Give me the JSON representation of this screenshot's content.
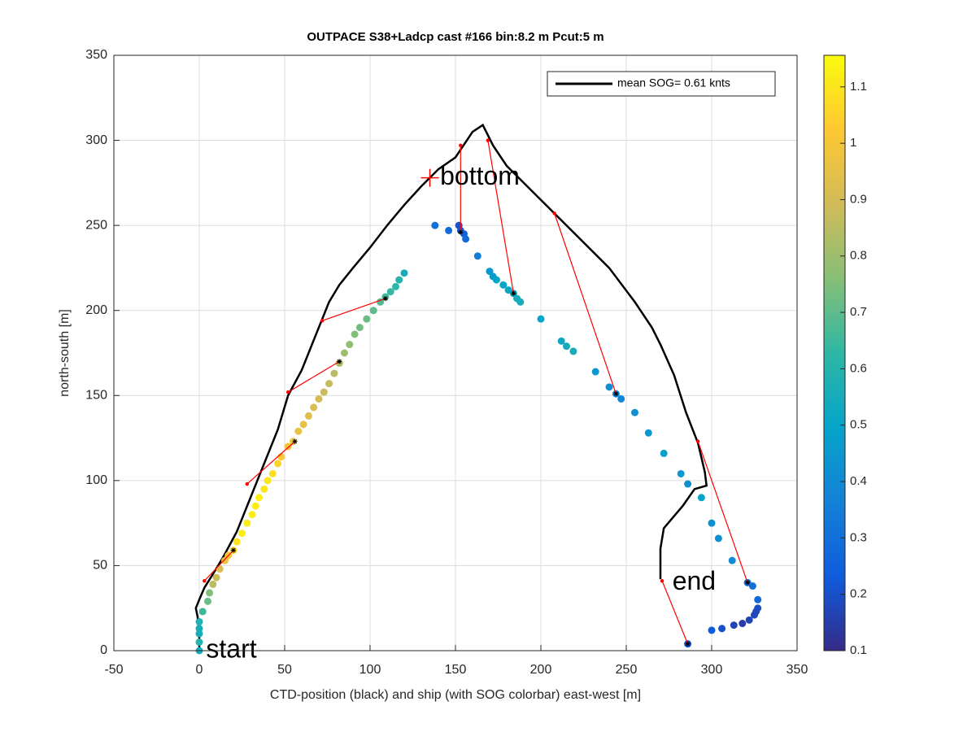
{
  "chart_data": {
    "type": "scatter",
    "title": "OUTPACE S38+Ladcp cast #166 bin:8.2 m  Pcut:5 m",
    "xlabel": "CTD-position (black) and ship (with SOG colorbar) east-west [m]",
    "ylabel": "north-south [m]",
    "xlim": [
      -50,
      350
    ],
    "ylim": [
      0,
      350
    ],
    "xticks": [
      -50,
      0,
      50,
      100,
      150,
      200,
      250,
      300,
      350
    ],
    "yticks": [
      0,
      50,
      100,
      150,
      200,
      250,
      300,
      350
    ],
    "grid": true,
    "legend": "top-right",
    "series": [
      {
        "name": "mean SOG=  0.61 knts",
        "color": "#000000",
        "x": [
          0,
          0,
          -1,
          -2,
          0,
          3,
          8,
          14,
          22,
          30,
          38,
          46,
          52,
          60,
          68,
          72,
          76,
          82,
          90,
          100,
          110,
          120,
          130,
          140,
          150,
          160,
          166,
          168,
          172,
          180,
          190,
          205,
          220,
          240,
          255,
          265,
          270,
          278,
          285,
          292,
          296,
          297,
          290,
          283,
          272,
          270,
          270,
          270
        ],
        "y": [
          0,
          10,
          20,
          25,
          30,
          37,
          45,
          55,
          70,
          90,
          110,
          130,
          150,
          165,
          185,
          195,
          205,
          215,
          225,
          237,
          250,
          262,
          273,
          283,
          290,
          305,
          309,
          305,
          297,
          285,
          275,
          260,
          245,
          225,
          205,
          190,
          180,
          162,
          140,
          122,
          105,
          97,
          95,
          85,
          72,
          60,
          50,
          42
        ]
      }
    ],
    "ship": {
      "colormap": "parula",
      "x": [
        0,
        0,
        0,
        0,
        0,
        2,
        5,
        6,
        8,
        10,
        12,
        15,
        17,
        20,
        22,
        25,
        28,
        31,
        33,
        35,
        38,
        40,
        43,
        46,
        48,
        52,
        55,
        58,
        61,
        64,
        67,
        70,
        73,
        76,
        79,
        82,
        85,
        88,
        91,
        94,
        98,
        102,
        106,
        109,
        112,
        115,
        117,
        120,
        138,
        146,
        152,
        153,
        155,
        156,
        163,
        170,
        172,
        174,
        178,
        181,
        184,
        186,
        188,
        200,
        212,
        215,
        219,
        232,
        240,
        244,
        247,
        255,
        263,
        272,
        282,
        286,
        294,
        300,
        304,
        312,
        321,
        324,
        327,
        327,
        326,
        325,
        322,
        318,
        313,
        306,
        300,
        286
      ],
      "y": [
        0,
        5,
        10,
        13,
        17,
        23,
        29,
        34,
        39,
        43,
        48,
        53,
        56,
        59,
        64,
        69,
        75,
        80,
        85,
        90,
        95,
        100,
        104,
        110,
        114,
        120,
        123,
        129,
        133,
        138,
        143,
        148,
        152,
        157,
        163,
        169,
        175,
        180,
        186,
        190,
        195,
        200,
        205,
        208,
        211,
        214,
        218,
        222,
        250,
        247,
        250,
        247,
        245,
        242,
        232,
        223,
        220,
        218,
        215,
        212,
        210,
        207,
        205,
        195,
        182,
        179,
        176,
        164,
        155,
        151,
        148,
        140,
        128,
        116,
        104,
        98,
        90,
        75,
        66,
        53,
        40,
        38,
        30,
        25,
        23,
        21,
        18,
        16,
        15,
        13,
        12,
        4
      ],
      "sog": [
        0.55,
        0.6,
        0.55,
        0.55,
        0.58,
        0.65,
        0.72,
        0.75,
        0.85,
        0.88,
        0.92,
        0.97,
        1.0,
        1.05,
        1.1,
        1.12,
        1.12,
        1.12,
        1.12,
        1.12,
        1.1,
        1.1,
        1.08,
        1.05,
        1.02,
        1.0,
        0.98,
        0.96,
        0.95,
        0.93,
        0.92,
        0.9,
        0.88,
        0.87,
        0.85,
        0.82,
        0.8,
        0.78,
        0.75,
        0.73,
        0.72,
        0.7,
        0.68,
        0.66,
        0.64,
        0.62,
        0.6,
        0.55,
        0.3,
        0.28,
        0.2,
        0.22,
        0.25,
        0.28,
        0.35,
        0.45,
        0.47,
        0.5,
        0.5,
        0.52,
        0.53,
        0.55,
        0.55,
        0.5,
        0.52,
        0.55,
        0.55,
        0.45,
        0.42,
        0.4,
        0.38,
        0.42,
        0.45,
        0.48,
        0.45,
        0.42,
        0.5,
        0.42,
        0.42,
        0.4,
        0.3,
        0.3,
        0.28,
        0.2,
        0.18,
        0.18,
        0.17,
        0.15,
        0.17,
        0.2,
        0.23,
        0.2
      ]
    },
    "links": [
      {
        "x": [
          3,
          20
        ],
        "y": [
          41,
          59
        ]
      },
      {
        "x": [
          28,
          56
        ],
        "y": [
          98,
          123
        ]
      },
      {
        "x": [
          52,
          82
        ],
        "y": [
          152,
          170
        ]
      },
      {
        "x": [
          72,
          109
        ],
        "y": [
          194,
          207
        ]
      },
      {
        "x": [
          153,
          153
        ],
        "y": [
          297,
          246
        ]
      },
      {
        "x": [
          169,
          184
        ],
        "y": [
          300,
          210
        ]
      },
      {
        "x": [
          208,
          244
        ],
        "y": [
          257,
          151
        ]
      },
      {
        "x": [
          292,
          321
        ],
        "y": [
          123,
          40
        ]
      },
      {
        "x": [
          271,
          286
        ],
        "y": [
          41,
          4
        ]
      }
    ],
    "link_color": "#ff0000",
    "bottom_marker": {
      "x": 135,
      "y": 278
    },
    "annotations": [
      {
        "text": "start",
        "x": 4,
        "y": 0
      },
      {
        "text": "bottom",
        "x": 141,
        "y": 278
      },
      {
        "text": "end",
        "x": 277,
        "y": 40
      }
    ],
    "colorbar": {
      "clim": [
        0.1,
        1.156
      ],
      "ticks": [
        0.1,
        0.2,
        0.3,
        0.4,
        0.5,
        0.6,
        0.7,
        0.8,
        0.9,
        1,
        1.1
      ]
    }
  }
}
